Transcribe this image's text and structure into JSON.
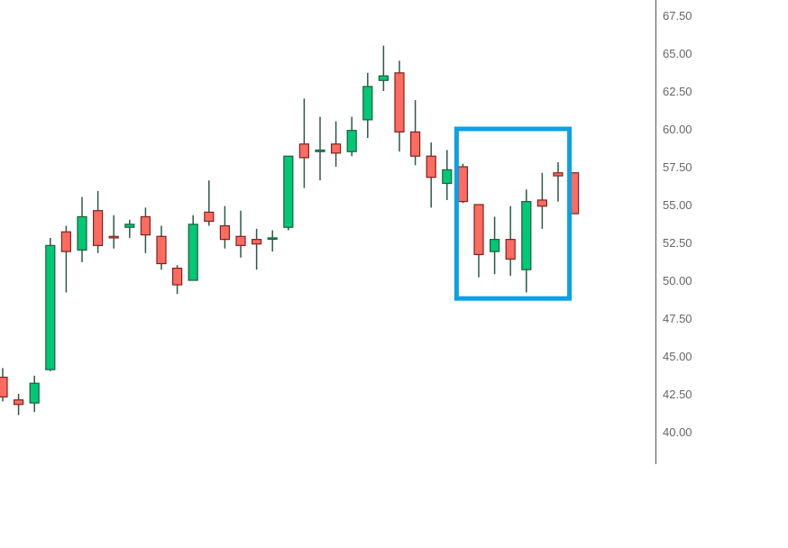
{
  "chart_data": {
    "type": "candlestick",
    "title": "",
    "xlabel": "",
    "ylabel": "",
    "ylim": [
      38.5,
      68.5
    ],
    "yaxis_position": "right",
    "y_ticks": [
      "40.00",
      "42.50",
      "45.00",
      "47.50",
      "50.00",
      "52.50",
      "55.00",
      "57.50",
      "60.00",
      "62.50",
      "65.00",
      "67.50"
    ],
    "grid": false,
    "colors": {
      "up": "#00c974",
      "down": "#ff6b5e",
      "up_border": "#1f5c40",
      "down_border": "#7d2222",
      "wick": "#2a5a44",
      "highlight": "#0aa1e8",
      "axis": "#555555"
    },
    "candles": [
      {
        "o": 43.6,
        "h": 44.2,
        "l": 42.0,
        "c": 42.3
      },
      {
        "o": 42.1,
        "h": 42.5,
        "l": 41.1,
        "c": 41.8
      },
      {
        "o": 41.9,
        "h": 43.7,
        "l": 41.3,
        "c": 43.2
      },
      {
        "o": 44.1,
        "h": 52.8,
        "l": 44.0,
        "c": 52.3
      },
      {
        "o": 53.2,
        "h": 53.6,
        "l": 49.2,
        "c": 51.9
      },
      {
        "o": 52.0,
        "h": 55.5,
        "l": 51.2,
        "c": 54.2
      },
      {
        "o": 54.6,
        "h": 55.9,
        "l": 51.8,
        "c": 52.3
      },
      {
        "o": 52.9,
        "h": 54.3,
        "l": 52.1,
        "c": 52.8
      },
      {
        "o": 53.5,
        "h": 54.0,
        "l": 52.8,
        "c": 53.7
      },
      {
        "o": 54.2,
        "h": 54.8,
        "l": 51.8,
        "c": 53.0
      },
      {
        "o": 52.9,
        "h": 53.6,
        "l": 50.7,
        "c": 51.1
      },
      {
        "o": 50.8,
        "h": 51.0,
        "l": 49.1,
        "c": 49.7
      },
      {
        "o": 50.0,
        "h": 54.3,
        "l": 50.0,
        "c": 53.7
      },
      {
        "o": 54.5,
        "h": 56.6,
        "l": 53.6,
        "c": 53.9
      },
      {
        "o": 53.6,
        "h": 54.9,
        "l": 52.1,
        "c": 52.7
      },
      {
        "o": 52.9,
        "h": 54.6,
        "l": 51.5,
        "c": 52.3
      },
      {
        "o": 52.7,
        "h": 53.4,
        "l": 50.7,
        "c": 52.4
      },
      {
        "o": 52.8,
        "h": 53.3,
        "l": 51.9,
        "c": 52.8
      },
      {
        "o": 53.5,
        "h": 58.2,
        "l": 53.3,
        "c": 58.2
      },
      {
        "o": 59.0,
        "h": 62.0,
        "l": 56.1,
        "c": 58.1
      },
      {
        "o": 58.5,
        "h": 60.8,
        "l": 56.6,
        "c": 58.6
      },
      {
        "o": 59.0,
        "h": 60.5,
        "l": 57.5,
        "c": 58.4
      },
      {
        "o": 58.5,
        "h": 60.8,
        "l": 58.2,
        "c": 59.9
      },
      {
        "o": 60.6,
        "h": 63.7,
        "l": 59.4,
        "c": 62.8
      },
      {
        "o": 63.2,
        "h": 65.5,
        "l": 62.5,
        "c": 63.5
      },
      {
        "o": 63.7,
        "h": 64.5,
        "l": 58.5,
        "c": 59.8
      },
      {
        "o": 59.8,
        "h": 61.9,
        "l": 57.6,
        "c": 58.2
      },
      {
        "o": 58.2,
        "h": 59.1,
        "l": 54.8,
        "c": 56.8
      },
      {
        "o": 56.4,
        "h": 58.6,
        "l": 55.3,
        "c": 57.3
      },
      {
        "o": 57.5,
        "h": 57.7,
        "l": 55.1,
        "c": 55.2
      },
      {
        "o": 55.0,
        "h": 55.0,
        "l": 50.2,
        "c": 51.7
      },
      {
        "o": 51.9,
        "h": 54.2,
        "l": 50.4,
        "c": 52.7
      },
      {
        "o": 52.7,
        "h": 54.9,
        "l": 50.3,
        "c": 51.4
      },
      {
        "o": 50.7,
        "h": 56.0,
        "l": 49.2,
        "c": 55.2
      },
      {
        "o": 55.3,
        "h": 57.1,
        "l": 53.4,
        "c": 54.9
      },
      {
        "o": 57.1,
        "h": 57.8,
        "l": 55.2,
        "c": 56.9
      },
      {
        "o": 57.1,
        "h": 57.1,
        "l": 54.4,
        "c": 54.4
      }
    ],
    "highlight_range": {
      "from_index": 29,
      "to_index": 36,
      "price_low": 48.8,
      "price_high": 60.0
    }
  }
}
